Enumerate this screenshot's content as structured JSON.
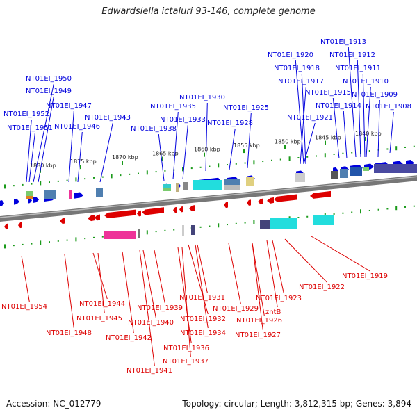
{
  "title": "Edwardsiella ictaluri 93-146, complete genome",
  "footer": {
    "accession": "Accession: NC_012779",
    "topology": "Topology: circular; Length: 3,812,315 bp; Genes: 3,894"
  },
  "colors": {
    "forward": "#0000dd",
    "reverse": "#dd0000",
    "backbone": "#777777",
    "tick": "#1a9a1a"
  },
  "kbp_marks": [
    "1880 kbp",
    "1875 kbp",
    "1870 kbp",
    "1865 kbp",
    "1860 kbp",
    "1855 kbp",
    "1850 kbp",
    "1845 kbp",
    "1840 kbp"
  ],
  "forward_labels": [
    "NT01EI_1950",
    "NT01EI_1949",
    "NT01EI_1952",
    "NT01EI_1951",
    "NT01EI_1947",
    "NT01EI_1946",
    "NT01EI_1943",
    "NT01EI_1938",
    "NT01EI_1935",
    "NT01EI_1933",
    "NT01EI_1930",
    "NT01EI_1928",
    "NT01EI_1925",
    "NT01EI_1921",
    "NT01EI_1920",
    "NT01EI_1918",
    "NT01EI_1917",
    "NT01EI_1915",
    "NT01EI_1914",
    "NT01EI_1913",
    "NT01EI_1912",
    "NT01EI_1911",
    "NT01EI_1910",
    "NT01EI_1909",
    "NT01EI_1908"
  ],
  "reverse_labels": [
    "NT01EI_1954",
    "NT01EI_1948",
    "NT01EI_1944",
    "NT01EI_1945",
    "NT01EI_1942",
    "NT01EI_1940",
    "NT01EI_1939",
    "NT01EI_1941",
    "NT01EI_1936",
    "NT01EI_1937",
    "NT01EI_1934",
    "NT01EI_1931",
    "NT01EI_1932",
    "NT01EI_1929",
    "NT01EI_1926",
    "NT01EI_1927",
    "zntB",
    "NT01EI_1923",
    "NT01EI_1922",
    "NT01EI_1919"
  ]
}
